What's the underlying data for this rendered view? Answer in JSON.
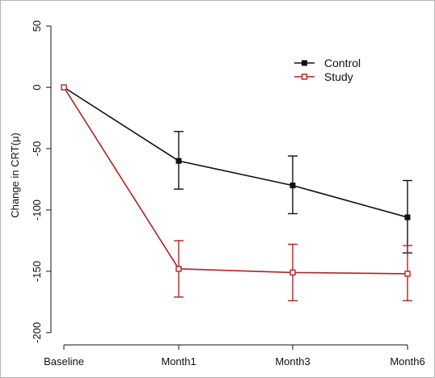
{
  "chart_data": {
    "type": "line",
    "title": "",
    "xlabel": "",
    "ylabel": "Change in CRT(μ)",
    "categories": [
      "Baseline",
      "Month1",
      "Month3",
      "Month6"
    ],
    "ylim": [
      -210,
      60
    ],
    "yticks": [
      50,
      0,
      -50,
      -100,
      -150,
      -200
    ],
    "grid": false,
    "legend_position": "top-right",
    "series": [
      {
        "name": "Control",
        "color": "#111111",
        "marker": "filled-square",
        "values": [
          0,
          -60,
          -80,
          -106
        ],
        "error_low": [
          0,
          -83,
          -103,
          -135
        ],
        "error_high": [
          0,
          -36,
          -56,
          -76
        ]
      },
      {
        "name": "Study",
        "color": "#b22222",
        "marker": "open-square",
        "values": [
          0,
          -148,
          -151,
          -152
        ],
        "error_low": [
          0,
          -171,
          -174,
          -174
        ],
        "error_high": [
          0,
          -125,
          -128,
          -129
        ]
      }
    ]
  }
}
